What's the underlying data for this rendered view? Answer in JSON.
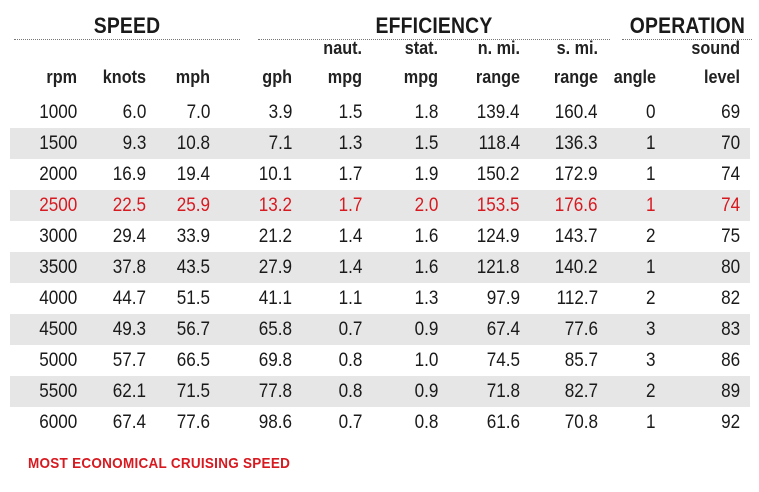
{
  "groups": {
    "speed": "SPEED",
    "efficiency": "EFFICIENCY",
    "operation": "OPERATION"
  },
  "columns": [
    {
      "key": "rpm",
      "top": "",
      "bottom": "rpm"
    },
    {
      "key": "knots",
      "top": "",
      "bottom": "knots"
    },
    {
      "key": "mph",
      "top": "",
      "bottom": "mph"
    },
    {
      "key": "gph",
      "top": "",
      "bottom": "gph"
    },
    {
      "key": "naut_mpg",
      "top": "naut.",
      "bottom": "mpg"
    },
    {
      "key": "stat_mpg",
      "top": "stat.",
      "bottom": "mpg"
    },
    {
      "key": "n_mi_range",
      "top": "n. mi.",
      "bottom": "range"
    },
    {
      "key": "s_mi_range",
      "top": "s. mi.",
      "bottom": "range"
    },
    {
      "key": "angle",
      "top": "",
      "bottom": "angle"
    },
    {
      "key": "sound",
      "top": "sound",
      "bottom": "level"
    }
  ],
  "rows": [
    {
      "values": [
        "1000",
        "6.0",
        "7.0",
        "3.9",
        "1.5",
        "1.8",
        "139.4",
        "160.4",
        "0",
        "69"
      ],
      "highlight": false
    },
    {
      "values": [
        "1500",
        "9.3",
        "10.8",
        "7.1",
        "1.3",
        "1.5",
        "118.4",
        "136.3",
        "1",
        "70"
      ],
      "highlight": false
    },
    {
      "values": [
        "2000",
        "16.9",
        "19.4",
        "10.1",
        "1.7",
        "1.9",
        "150.2",
        "172.9",
        "1",
        "74"
      ],
      "highlight": false
    },
    {
      "values": [
        "2500",
        "22.5",
        "25.9",
        "13.2",
        "1.7",
        "2.0",
        "153.5",
        "176.6",
        "1",
        "74"
      ],
      "highlight": true
    },
    {
      "values": [
        "3000",
        "29.4",
        "33.9",
        "21.2",
        "1.4",
        "1.6",
        "124.9",
        "143.7",
        "2",
        "75"
      ],
      "highlight": false
    },
    {
      "values": [
        "3500",
        "37.8",
        "43.5",
        "27.9",
        "1.4",
        "1.6",
        "121.8",
        "140.2",
        "1",
        "80"
      ],
      "highlight": false
    },
    {
      "values": [
        "4000",
        "44.7",
        "51.5",
        "41.1",
        "1.1",
        "1.3",
        "97.9",
        "112.7",
        "2",
        "82"
      ],
      "highlight": false
    },
    {
      "values": [
        "4500",
        "49.3",
        "56.7",
        "65.8",
        "0.7",
        "0.9",
        "67.4",
        "77.6",
        "3",
        "83"
      ],
      "highlight": false
    },
    {
      "values": [
        "5000",
        "57.7",
        "66.5",
        "69.8",
        "0.8",
        "1.0",
        "74.5",
        "85.7",
        "3",
        "86"
      ],
      "highlight": false
    },
    {
      "values": [
        "5500",
        "62.1",
        "71.5",
        "77.8",
        "0.8",
        "0.9",
        "71.8",
        "82.7",
        "2",
        "89"
      ],
      "highlight": false
    },
    {
      "values": [
        "6000",
        "67.4",
        "77.6",
        "98.6",
        "0.7",
        "0.8",
        "61.6",
        "70.8",
        "1",
        "92"
      ],
      "highlight": false
    }
  ],
  "footnote": "MOST ECONOMICAL CRUISING SPEED",
  "colors": {
    "highlight": "#d71920",
    "shade": "#e6e6e6",
    "text": "#1a1a1a"
  }
}
